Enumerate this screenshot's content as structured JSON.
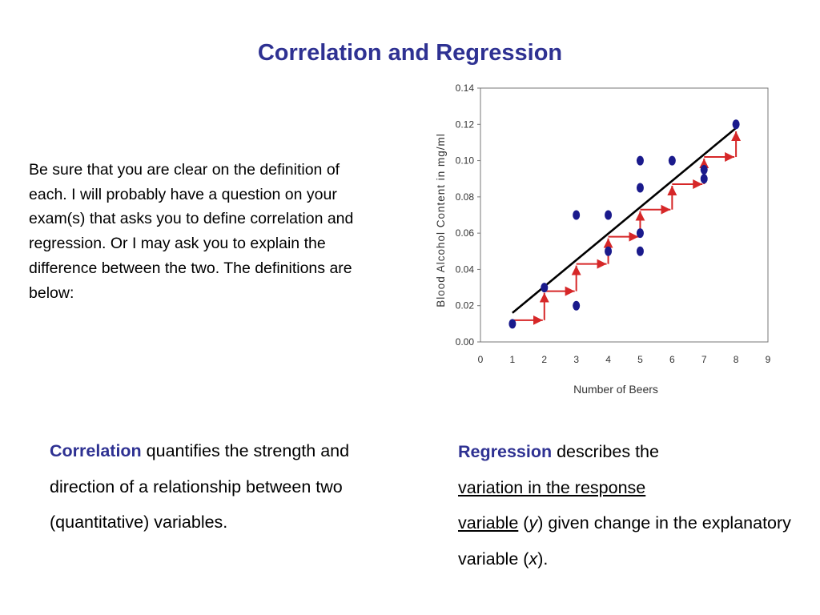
{
  "title": "Correlation and Regression",
  "intro": "Be sure that you are clear  on the definition of each. I will probably have a question on your exam(s) that asks you to define correlation and regression. Or I may ask you to explain the difference between the two. The definitions are below:",
  "correlation": {
    "term": "Correlation",
    "text": " quantifies the strength and direction of a relationship between two (quantitative) variables."
  },
  "regression": {
    "term": "Regression",
    "text1": " describes the ",
    "underline1": "variation in the response",
    "underline2": "variable",
    "text2": " (",
    "y": "y",
    "text3": ") given change in the explanatory variable (",
    "x": "x",
    "text4": ")."
  },
  "colors": {
    "accent": "#2e3192",
    "points": "#1a1a8c",
    "line": "#000000",
    "arrows": "#d62728"
  },
  "chart_data": {
    "type": "scatter",
    "xlabel": "Number of Beers",
    "ylabel": "Blood Alcohol Content in mg/ml",
    "xlim": [
      0,
      9
    ],
    "ylim": [
      0,
      0.14
    ],
    "xticks": [
      "0",
      "1",
      "2",
      "3",
      "4",
      "5",
      "6",
      "7",
      "8",
      "9"
    ],
    "yticks": [
      "0.00",
      "0.02",
      "0.04",
      "0.06",
      "0.08",
      "0.10",
      "0.12",
      "0.14"
    ],
    "points": [
      {
        "x": 1,
        "y": 0.01
      },
      {
        "x": 2,
        "y": 0.03
      },
      {
        "x": 3,
        "y": 0.07
      },
      {
        "x": 3,
        "y": 0.02
      },
      {
        "x": 4,
        "y": 0.07
      },
      {
        "x": 4,
        "y": 0.05
      },
      {
        "x": 5,
        "y": 0.1
      },
      {
        "x": 5,
        "y": 0.085
      },
      {
        "x": 5,
        "y": 0.06
      },
      {
        "x": 5,
        "y": 0.05
      },
      {
        "x": 6,
        "y": 0.1
      },
      {
        "x": 7,
        "y": 0.095
      },
      {
        "x": 7,
        "y": 0.09
      },
      {
        "x": 8,
        "y": 0.12
      }
    ],
    "fit_line": {
      "x": [
        1,
        8
      ],
      "y": [
        0.016,
        0.118
      ]
    },
    "steps": [
      {
        "x": 1,
        "y": 0.012
      },
      {
        "x": 2,
        "y": 0.028
      },
      {
        "x": 3,
        "y": 0.043
      },
      {
        "x": 4,
        "y": 0.058
      },
      {
        "x": 5,
        "y": 0.073
      },
      {
        "x": 6,
        "y": 0.087
      },
      {
        "x": 7,
        "y": 0.102
      },
      {
        "x": 8,
        "y": 0.117
      }
    ],
    "grid": false,
    "legend": "none"
  }
}
